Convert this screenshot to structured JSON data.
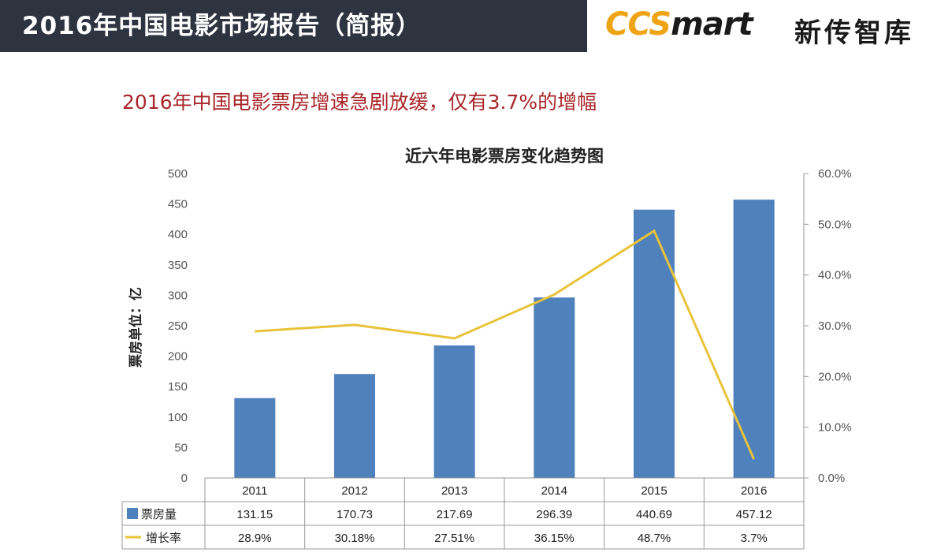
{
  "header": {
    "title": "2016年中国电影市场报告（简报）",
    "logo_part1": "CCS",
    "logo_part2": "mart",
    "logo_cn": "新传智库"
  },
  "subtitle": "2016年中国电影票房增速急剧放缓，仅有3.7%的增幅",
  "colors": {
    "header_bg": "#2e3340",
    "bar": "#4f81bd",
    "line": "#e8c33a",
    "subtitle": "#a8262a",
    "logo_orange": "#efa415"
  },
  "chart_data": {
    "type": "bar",
    "title": "近六年电影票房变化趋势图",
    "ylabel": "票房单位：亿",
    "xlabel": "",
    "categories": [
      "2011",
      "2012",
      "2013",
      "2014",
      "2015",
      "2016"
    ],
    "ylim": [
      0,
      500
    ],
    "y_ticks": [
      "0",
      "50",
      "100",
      "150",
      "200",
      "250",
      "300",
      "350",
      "400",
      "450",
      "500"
    ],
    "y2lim": [
      0,
      60
    ],
    "y2_ticks": [
      "0.0%",
      "10.0%",
      "20.0%",
      "30.0%",
      "40.0%",
      "50.0%",
      "60.0%"
    ],
    "series": [
      {
        "name": "票房量",
        "type": "bar",
        "axis": "left",
        "values": [
          131.15,
          170.73,
          217.69,
          296.39,
          440.69,
          457.12
        ],
        "labels": [
          "131.15",
          "170.73",
          "217.69",
          "296.39",
          "440.69",
          "457.12"
        ]
      },
      {
        "name": "增长率",
        "type": "line",
        "axis": "right",
        "values": [
          28.9,
          30.18,
          27.51,
          36.15,
          48.7,
          3.7
        ],
        "labels": [
          "28.9%",
          "30.18%",
          "27.51%",
          "36.15%",
          "48.7%",
          "3.7%"
        ]
      }
    ],
    "legend_position": "data-table-below"
  }
}
